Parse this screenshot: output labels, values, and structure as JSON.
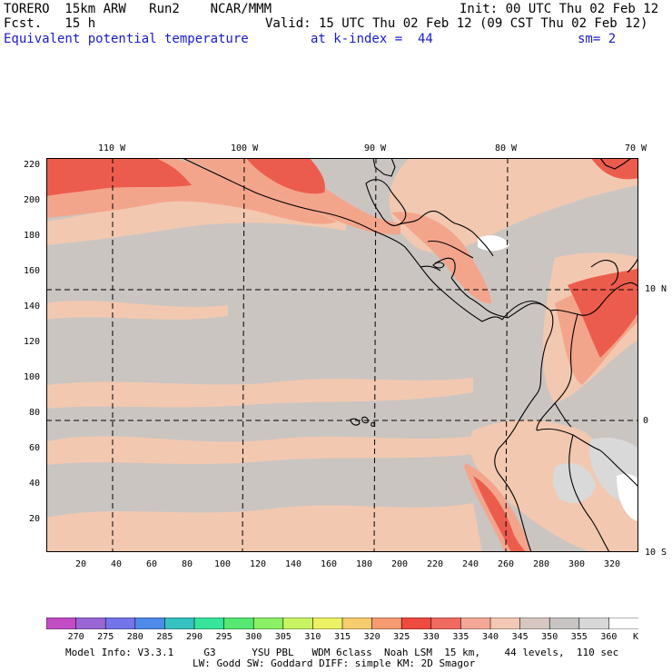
{
  "header": {
    "model": "TORERO  15km ARW   Run2    NCAR/MMM",
    "init": "Init: 00 UTC Thu 02 Feb 12",
    "fcst": "Fcst.   15 h",
    "valid": "Valid: 15 UTC Thu 02 Feb 12 (09 CST Thu 02 Feb 12)",
    "field": "Equivalent potential temperature",
    "level": "at k-index =  44",
    "smooth": "sm= 2"
  },
  "axes": {
    "top_lon": [
      "110 W",
      "100 W",
      "90 W",
      "80 W",
      "70 W"
    ],
    "right_lat": [
      "10 N",
      "0",
      "10 S"
    ],
    "left_y": [
      "220",
      "200",
      "180",
      "160",
      "140",
      "120",
      "100",
      "80",
      "60",
      "40",
      "20"
    ],
    "bottom_x": [
      "20",
      "40",
      "60",
      "80",
      "100",
      "120",
      "140",
      "160",
      "180",
      "200",
      "220",
      "240",
      "260",
      "280",
      "300",
      "320"
    ]
  },
  "colorbar": {
    "labels": [
      "270",
      "275",
      "280",
      "285",
      "290",
      "295",
      "300",
      "305",
      "310",
      "315",
      "320",
      "325",
      "330",
      "335",
      "340",
      "345",
      "350",
      "355",
      "360"
    ],
    "unit": "K",
    "colors": [
      "#c24cc4",
      "#9a66d6",
      "#7474ea",
      "#4e8ae8",
      "#36c2c0",
      "#36e49c",
      "#56e870",
      "#8af064",
      "#c8f464",
      "#ecf264",
      "#f6cc6e",
      "#f69a72",
      "#ee4a40",
      "#f06a60",
      "#f5a898",
      "#f3c8b4",
      "#d6c8c0",
      "#c8c4c4",
      "#d8d8d8",
      "#ffffff"
    ]
  },
  "map_colors": {
    "base": "#cbc5c2",
    "peach": "#f2c8b0",
    "salmon": "#f3a58c",
    "red": "#ec5c4c",
    "gray_light": "#d9d9d9",
    "white": "#ffffff"
  },
  "footer": {
    "line1": "Model Info: V3.3.1     G3      YSU PBL   WDM 6class  Noah LSM  15 km,    44 levels,  110 sec",
    "line2": "LW: Godd SW: Goddard DIFF: simple KM: 2D Smagor"
  }
}
